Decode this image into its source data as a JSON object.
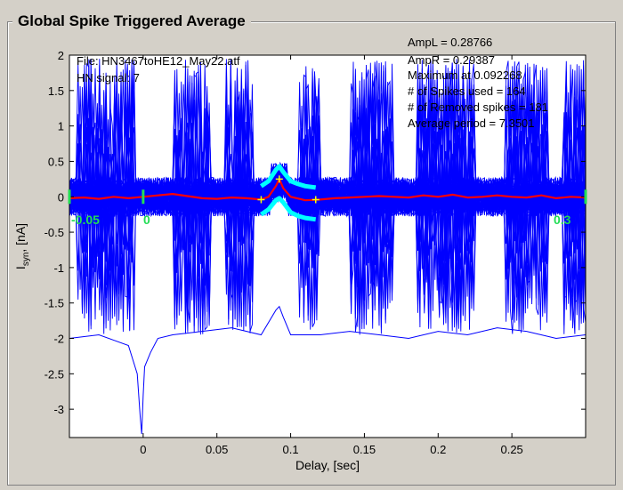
{
  "window": {
    "title": "Global Spike Triggered Average"
  },
  "annotations": {
    "file": "File: HN3467toHE12_May22.atf",
    "hn_signal": "HN signal: 7",
    "ampl": "AmpL = 0.28766",
    "ampr": "AmpR = 0.29387",
    "maximum": "Maximum at 0.092268",
    "spikes_used": "# of Spikes used = 164",
    "removed_spikes": "# of Removed spikes = 181",
    "average_period": "Average period = 7.3501"
  },
  "markers": {
    "left": "-0.05",
    "zero": "0",
    "right": "0.3"
  },
  "colors": {
    "traces": "#0000ff",
    "average": "#ff0000",
    "bounds": "#00ffff",
    "markers": "#22dd55",
    "points": "#ffff00"
  },
  "chart_data": {
    "type": "line",
    "title": "",
    "xlabel": "Delay, [sec]",
    "ylabel_main": "I",
    "ylabel_sub": "syn",
    "ylabel_unit": ", [nA]",
    "xlim": [
      -0.05,
      0.3
    ],
    "ylim": [
      -3.4,
      2.0
    ],
    "x_ticks": [
      0,
      0.05,
      0.1,
      0.15,
      0.2,
      0.25
    ],
    "x_tick_labels": [
      "0",
      "0.05",
      "0.1",
      "0.15",
      "0.2",
      "0.25"
    ],
    "y_ticks": [
      2,
      1.5,
      1,
      0.5,
      0,
      -0.5,
      -1,
      -1.5,
      -2,
      -2.5,
      -3
    ],
    "y_tick_labels": [
      "2",
      "1.5",
      "1",
      "0.5",
      "0",
      "-0.5",
      "-1",
      "-1.5",
      "-2",
      "-2.5",
      "-3"
    ],
    "series": [
      {
        "role": "average",
        "x": [
          -0.05,
          -0.04,
          -0.03,
          -0.02,
          -0.01,
          0,
          0.01,
          0.02,
          0.03,
          0.04,
          0.05,
          0.06,
          0.07,
          0.08,
          0.085,
          0.09,
          0.0923,
          0.095,
          0.1,
          0.11,
          0.12,
          0.13,
          0.14,
          0.15,
          0.16,
          0.17,
          0.18,
          0.19,
          0.2,
          0.21,
          0.22,
          0.23,
          0.24,
          0.25,
          0.26,
          0.27,
          0.28,
          0.29,
          0.3
        ],
        "y": [
          -0.02,
          -0.01,
          -0.03,
          0.0,
          -0.02,
          0.0,
          0.02,
          0.04,
          0.01,
          -0.02,
          -0.03,
          -0.01,
          -0.02,
          -0.04,
          0.0,
          0.15,
          0.25,
          0.12,
          0.0,
          -0.05,
          -0.04,
          -0.02,
          -0.01,
          0.0,
          0.01,
          0.0,
          -0.01,
          0.02,
          0.0,
          0.03,
          -0.01,
          0.0,
          0.02,
          0.0,
          -0.01,
          0.02,
          -0.02,
          0.0,
          -0.01
        ]
      },
      {
        "role": "upper-bound",
        "x": [
          0.08,
          0.085,
          0.09,
          0.0923,
          0.095,
          0.1,
          0.105,
          0.11,
          0.117
        ],
        "y": [
          0.15,
          0.22,
          0.38,
          0.43,
          0.35,
          0.22,
          0.18,
          0.15,
          0.13
        ]
      },
      {
        "role": "lower-bound",
        "x": [
          0.08,
          0.085,
          0.09,
          0.0923,
          0.095,
          0.1,
          0.105,
          0.11,
          0.117
        ],
        "y": [
          -0.25,
          -0.18,
          -0.05,
          -0.02,
          -0.08,
          -0.22,
          -0.27,
          -0.3,
          -0.32
        ]
      }
    ],
    "points": [
      {
        "x": 0.08,
        "y": -0.04
      },
      {
        "x": 0.0923,
        "y": 0.25
      },
      {
        "x": 0.117,
        "y": -0.04
      }
    ],
    "outlier_trace": {
      "x": [
        -0.05,
        -0.03,
        -0.01,
        -0.004,
        -0.002,
        -0.001,
        0,
        0.001,
        0.003,
        0.005,
        0.01,
        0.02,
        0.04,
        0.06,
        0.08,
        0.09,
        0.0923,
        0.095,
        0.1,
        0.12,
        0.14,
        0.16,
        0.18,
        0.2,
        0.22,
        0.24,
        0.26,
        0.28,
        0.3
      ],
      "y": [
        -2.0,
        -1.95,
        -2.1,
        -2.5,
        -3.1,
        -3.35,
        -2.8,
        -2.4,
        -2.3,
        -2.2,
        -2.0,
        -1.95,
        -1.9,
        -1.85,
        -1.95,
        -1.6,
        -1.55,
        -1.7,
        -1.95,
        -1.95,
        -1.9,
        -1.95,
        -2.0,
        -1.9,
        -1.95,
        -1.85,
        -1.9,
        -2.0,
        -1.95
      ]
    },
    "grid": false,
    "legend": "none"
  }
}
